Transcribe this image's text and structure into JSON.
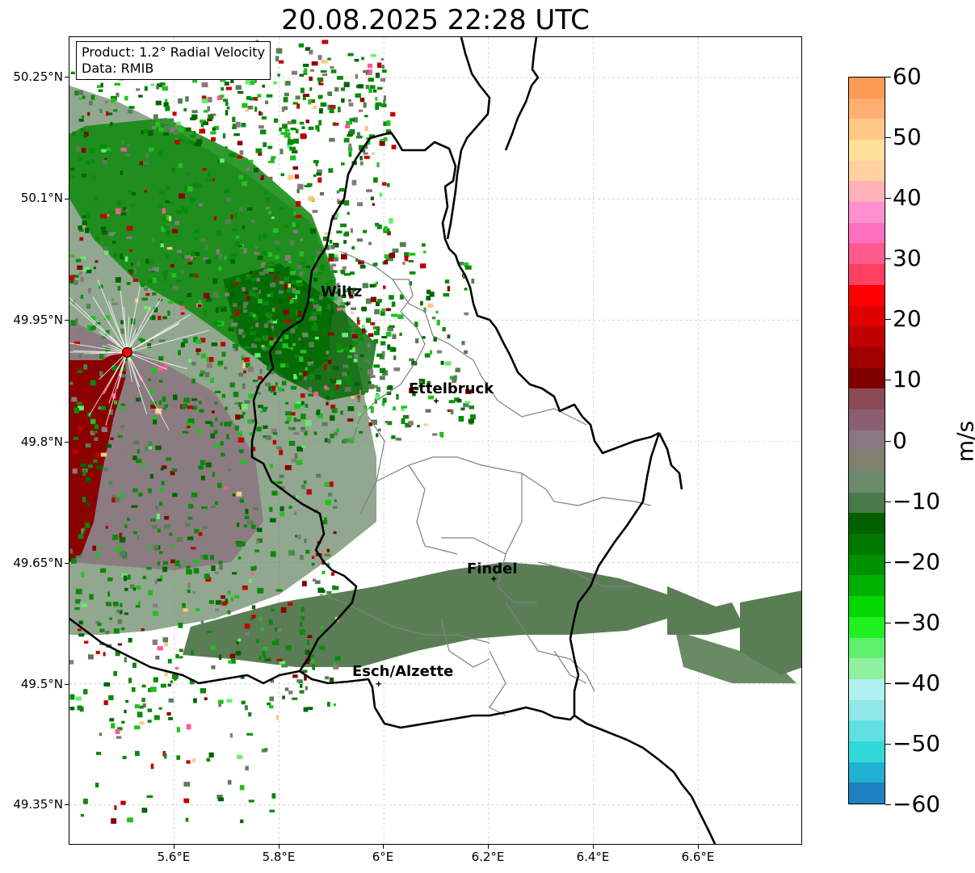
{
  "title": "20.08.2025 22:28 UTC",
  "info": {
    "product": "Product: 1.2° Radial Velocity",
    "data_source": "Data: RMIB"
  },
  "axes": {
    "y_ticks": [
      "50.25°N",
      "50.1°N",
      "49.95°N",
      "49.8°N",
      "49.65°N",
      "49.5°N",
      "49.35°N"
    ],
    "x_ticks": [
      "5.6°E",
      "5.8°E",
      "6°E",
      "6.2°E",
      "6.4°E",
      "6.6°E"
    ],
    "lon_range": [
      5.4,
      6.8
    ],
    "lat_range": [
      49.3,
      50.3
    ],
    "gridlines": true
  },
  "cities": [
    {
      "name": "Wiltz",
      "lon": 5.93,
      "lat": 49.97
    },
    {
      "name": "Ettelbruck",
      "lon": 6.1,
      "lat": 49.85
    },
    {
      "name": "Findel",
      "lon": 6.21,
      "lat": 49.63
    },
    {
      "name": "Esch/Alzette",
      "lon": 5.99,
      "lat": 49.5
    }
  ],
  "radar_site": {
    "lon": 5.51,
    "lat": 49.91,
    "color": "#ff0000"
  },
  "colorbar": {
    "label": "m/s",
    "min": -60,
    "max": 60,
    "ticks": [
      "60",
      "50",
      "40",
      "30",
      "20",
      "10",
      "0",
      "−10",
      "−20",
      "−30",
      "−40",
      "−50",
      "−60"
    ],
    "colors_top_to_bottom": [
      "#ff9a55",
      "#ffb070",
      "#ffc885",
      "#ffdf9a",
      "#ffd0a0",
      "#ffb0b8",
      "#ff90d0",
      "#ff70c0",
      "#ff5a90",
      "#ff4060",
      "#ff0000",
      "#e00000",
      "#c00000",
      "#a00000",
      "#800000",
      "#8a4a55",
      "#8a6070",
      "#887880",
      "#80806e",
      "#6a8a6a",
      "#4a7a4a",
      "#006000",
      "#007800",
      "#009000",
      "#00b000",
      "#00d800",
      "#20f020",
      "#60f070",
      "#90f0a0",
      "#b0f0f0",
      "#90e8e8",
      "#60e0e0",
      "#30d8d8",
      "#20b0d0",
      "#2080c0"
    ]
  },
  "colors": {
    "border": "#000000",
    "canton_lines": "#808080",
    "grid": "#bbbbbb",
    "band_green": "#5a7d55",
    "dark_red": "#8b0000",
    "mauve": "#8a7880",
    "radar_green": "#0a8a0a"
  }
}
